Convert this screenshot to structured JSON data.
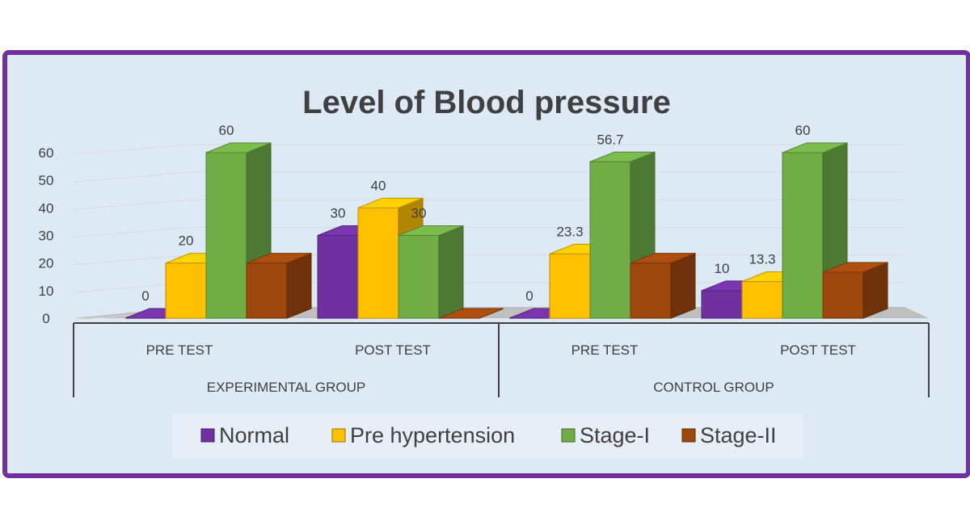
{
  "chart_data": {
    "type": "bar",
    "title": "Level of Blood pressure",
    "groups": [
      {
        "label": "EXPERIMENTAL GROUP",
        "categories": [
          "PRE TEST",
          "POST TEST"
        ]
      },
      {
        "label": "CONTROL GROUP",
        "categories": [
          "PRE TEST",
          "POST TEST"
        ]
      }
    ],
    "categories": [
      "PRE TEST",
      "POST TEST",
      "PRE TEST",
      "POST TEST"
    ],
    "series": [
      {
        "name": "Normal",
        "values": [
          0,
          30,
          0,
          10
        ]
      },
      {
        "name": "Pre hypertension",
        "values": [
          20,
          40,
          23.3,
          13.3
        ]
      },
      {
        "name": "Stage-I",
        "values": [
          60,
          30,
          56.7,
          60
        ]
      },
      {
        "name": "Stage-II",
        "values": [
          20,
          0,
          20,
          16.7
        ]
      }
    ],
    "data_labels": [
      [
        "0",
        "30",
        "0",
        "10"
      ],
      [
        "20",
        "40",
        "23.3",
        "13.3"
      ],
      [
        "60",
        "30",
        "56.7",
        "60"
      ],
      [
        "",
        "",
        "",
        ""
      ]
    ],
    "yticks": [
      0,
      10,
      20,
      30,
      40,
      50,
      60
    ],
    "ylim": [
      0,
      60
    ],
    "xlabel": "",
    "ylabel": "",
    "legend_position": "bottom",
    "colors": {
      "Normal": "#7030a0",
      "Pre hypertension": "#ffc000",
      "Stage-I": "#70ad47",
      "Stage-II": "#9e480e"
    }
  }
}
